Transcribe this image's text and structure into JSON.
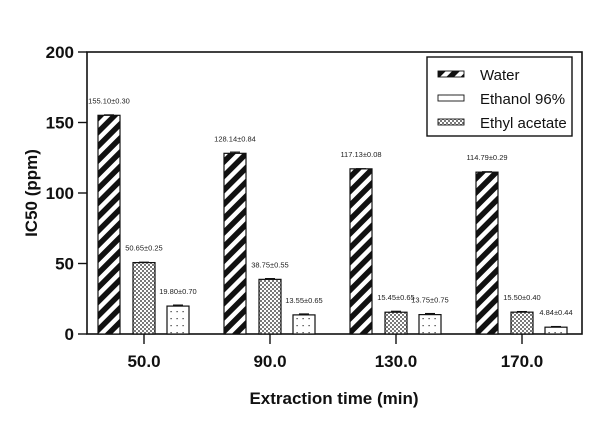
{
  "chart_data": {
    "type": "bar",
    "title": "",
    "xlabel": "Extraction time (min)",
    "ylabel": "IC50 (ppm)",
    "ylim": [
      0,
      200
    ],
    "yticks": [
      "0",
      "50",
      "100",
      "150",
      "200"
    ],
    "ytick_values": [
      0,
      50,
      100,
      150,
      200
    ],
    "categories": [
      "50.0",
      "90.0",
      "130.0",
      "170.0"
    ],
    "grid": false,
    "legend_position": "top-right",
    "series": [
      {
        "name": "Water",
        "pattern": "diagonal-stripes",
        "values": [
          155.1,
          128.14,
          117.13,
          114.79
        ],
        "errors": [
          0.3,
          0.84,
          0.08,
          0.29
        ],
        "labels": [
          "155.10±0.30",
          "128.14±0.84",
          "117.13±0.08",
          "114.79±0.29"
        ]
      },
      {
        "name": "Ethyl acetate",
        "pattern": "checkered",
        "values": [
          50.65,
          38.75,
          15.45,
          15.5
        ],
        "errors": [
          0.25,
          0.55,
          0.65,
          0.4
        ],
        "labels": [
          "50.65±0.25",
          "38.75±0.55",
          "15.45±0.65",
          "15.50±0.40"
        ]
      },
      {
        "name": "Ethanol 96%",
        "pattern": "dotted",
        "values": [
          19.8,
          13.55,
          13.75,
          4.84
        ],
        "errors": [
          0.7,
          0.65,
          0.75,
          0.44
        ],
        "labels": [
          "19.80±0.70",
          "13.55±0.65",
          "13.75±0.75",
          "4.84±0.44"
        ]
      }
    ],
    "legend": [
      {
        "name": "Water",
        "pattern": "diagonal-stripes"
      },
      {
        "name": "Ethanol 96%",
        "pattern": "dotted"
      },
      {
        "name": "Ethyl acetate",
        "pattern": "checkered"
      }
    ]
  },
  "colors": {
    "axis": "#111111",
    "bar_fill_dark": "#111111",
    "bar_fill_light": "#ffffff",
    "checker": "#888888"
  }
}
